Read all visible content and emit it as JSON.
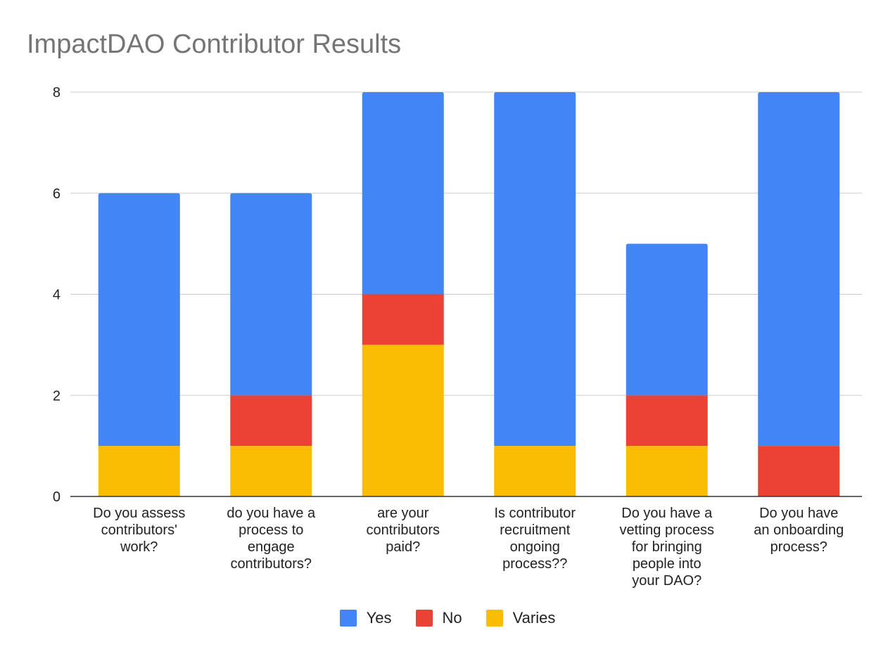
{
  "chart_data": {
    "type": "bar",
    "stacked": true,
    "title": "ImpactDAO Contributor Results",
    "xlabel": "",
    "ylabel": "",
    "ylim": [
      0,
      8
    ],
    "yticks": [
      "0",
      "2",
      "4",
      "6",
      "8"
    ],
    "grid": true,
    "legend_position": "bottom",
    "categories": [
      "Do you assess contributors' work?",
      "do you have a process to engage contributors?",
      "are your contributors paid?",
      "Is contributor recruitment ongoing process??",
      "Do you have a vetting process for bringing people into your DAO?",
      "Do you have an onboarding process?"
    ],
    "category_lines": [
      [
        "Do you assess",
        "contributors'",
        "work?"
      ],
      [
        "do you have a",
        "process to",
        "engage",
        "contributors?"
      ],
      [
        "are your",
        "contributors",
        "paid?"
      ],
      [
        "Is contributor",
        "recruitment",
        "ongoing",
        "process??"
      ],
      [
        "Do you have a",
        "vetting process",
        "for bringing",
        "people into",
        "your DAO?"
      ],
      [
        "Do you have",
        "an onboarding",
        "process?"
      ]
    ],
    "series": [
      {
        "name": "Varies",
        "color": "#fbbc04",
        "values": [
          1,
          1,
          3,
          1,
          1,
          0
        ]
      },
      {
        "name": "No",
        "color": "#ea4335",
        "values": [
          0,
          1,
          1,
          0,
          1,
          1
        ]
      },
      {
        "name": "Yes",
        "color": "#4285f4",
        "values": [
          5,
          4,
          4,
          7,
          3,
          7
        ]
      }
    ],
    "legend": [
      {
        "name": "Yes",
        "color": "#4285f4"
      },
      {
        "name": "No",
        "color": "#ea4335"
      },
      {
        "name": "Varies",
        "color": "#fbbc04"
      }
    ]
  }
}
